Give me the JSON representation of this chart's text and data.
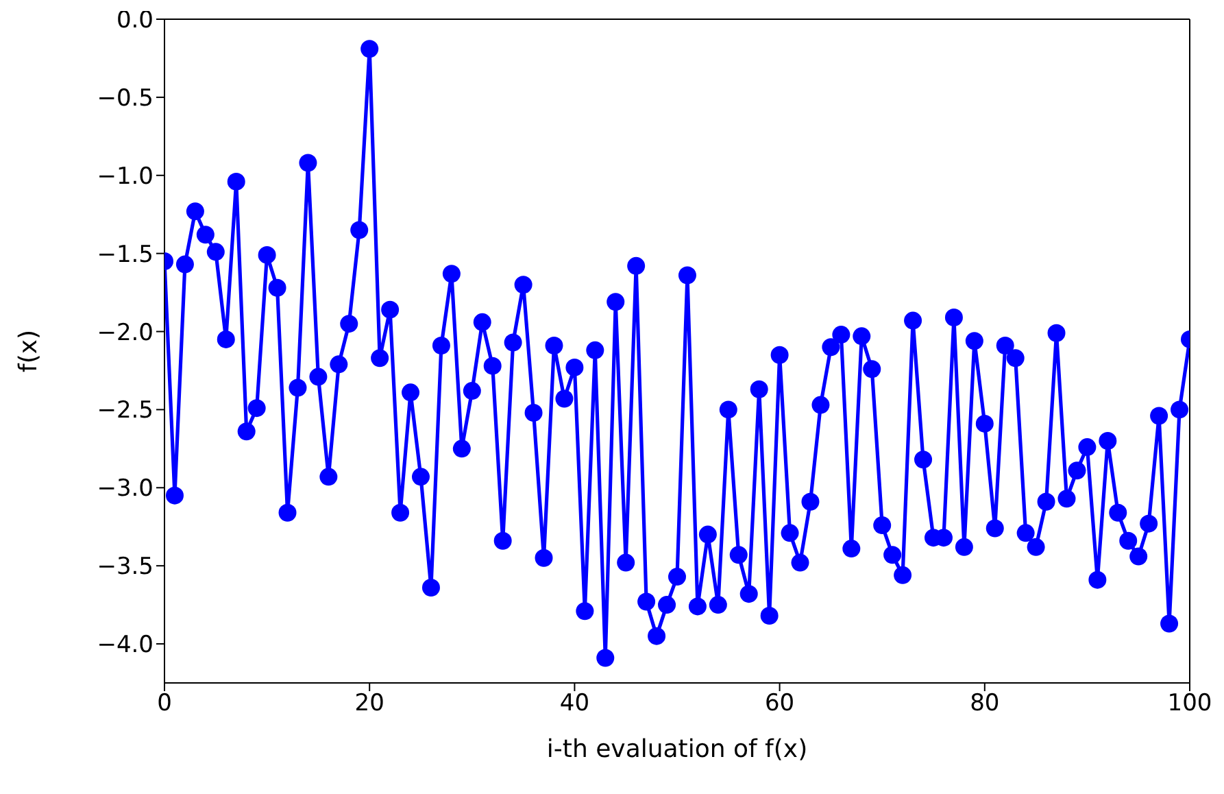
{
  "chart_data": {
    "type": "line",
    "xlabel": "i-th evaluation of f(x)",
    "ylabel": "f(x)",
    "x": [
      0,
      1,
      2,
      3,
      4,
      5,
      6,
      7,
      8,
      9,
      10,
      11,
      12,
      13,
      14,
      15,
      16,
      17,
      18,
      19,
      20,
      21,
      22,
      23,
      24,
      25,
      26,
      27,
      28,
      29,
      30,
      31,
      32,
      33,
      34,
      35,
      36,
      37,
      38,
      39,
      40,
      41,
      42,
      43,
      44,
      45,
      46,
      47,
      48,
      49,
      50,
      51,
      52,
      53,
      54,
      55,
      56,
      57,
      58,
      59,
      60,
      61,
      62,
      63,
      64,
      65,
      66,
      67,
      68,
      69,
      70,
      71,
      72,
      73,
      74,
      75,
      76,
      77,
      78,
      79,
      80,
      81,
      82,
      83,
      84,
      85,
      86,
      87,
      88,
      89,
      90,
      91,
      92,
      93,
      94,
      95,
      96,
      97,
      98,
      99,
      100
    ],
    "series": [
      {
        "color": "#0000ff",
        "values": [
          -1.55,
          -3.05,
          -1.57,
          -1.23,
          -1.38,
          -1.49,
          -2.05,
          -1.04,
          -2.64,
          -2.49,
          -1.51,
          -1.72,
          -3.16,
          -2.36,
          -0.92,
          -2.29,
          -2.93,
          -2.21,
          -1.95,
          -1.35,
          -0.19,
          -2.17,
          -1.86,
          -3.16,
          -2.39,
          -2.93,
          -3.64,
          -2.09,
          -1.63,
          -2.75,
          -2.38,
          -1.94,
          -2.22,
          -3.34,
          -2.07,
          -1.7,
          -2.52,
          -3.45,
          -2.09,
          -2.43,
          -2.23,
          -3.79,
          -2.12,
          -4.09,
          -1.81,
          -3.48,
          -1.58,
          -3.73,
          -3.95,
          -3.75,
          -3.57,
          -1.64,
          -3.76,
          -3.3,
          -3.75,
          -2.5,
          -3.43,
          -3.68,
          -2.37,
          -3.82,
          -2.15,
          -3.29,
          -3.48,
          -3.09,
          -2.47,
          -2.1,
          -2.02,
          -3.39,
          -2.03,
          -2.24,
          -3.24,
          -3.43,
          -3.56,
          -1.93,
          -2.82,
          -3.32,
          -3.32,
          -1.91,
          -3.38,
          -2.06,
          -2.59,
          -3.26,
          -2.09,
          -2.17,
          -3.29,
          -3.38,
          -3.09,
          -2.01,
          -3.07,
          -2.89,
          -2.74,
          -3.59,
          -2.7,
          -3.16,
          -3.34,
          -3.44,
          -3.23,
          -2.54,
          -3.87,
          -2.5,
          -2.05
        ]
      }
    ],
    "xlim": [
      0,
      100
    ],
    "xticks": [
      0,
      20,
      40,
      60,
      80,
      100
    ],
    "ylim": [
      -4.25,
      0
    ],
    "yticks": [
      {
        "value": -4,
        "label": "−4.0"
      },
      {
        "value": -3.5,
        "label": "−3.5"
      },
      {
        "value": -3,
        "label": "−3.0"
      },
      {
        "value": -2.5,
        "label": "−2.5"
      },
      {
        "value": -2,
        "label": "−2.0"
      },
      {
        "value": -1.5,
        "label": "−1.5"
      },
      {
        "value": -1,
        "label": "−1.0"
      },
      {
        "value": -0.5,
        "label": "−0.5"
      },
      {
        "value": 0,
        "label": "0.0"
      }
    ],
    "marker": "circle",
    "line_style": "solid",
    "grid": false,
    "legend": false
  }
}
